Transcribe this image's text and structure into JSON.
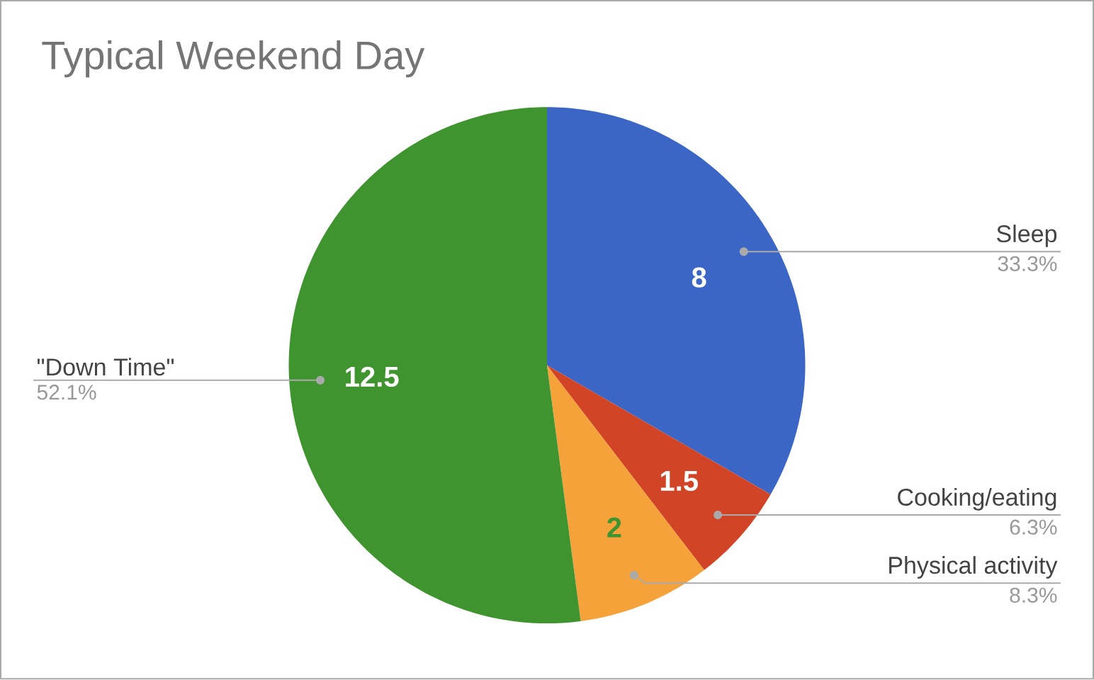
{
  "chart_data": {
    "type": "pie",
    "title": "Typical Weekend Day",
    "categories": [
      "Sleep",
      "Cooking/eating",
      "Physical activity",
      "\"Down Time\""
    ],
    "values": [
      8,
      1.5,
      2,
      12.5
    ],
    "colors": [
      "#3b66c6",
      "#d24426",
      "#f5a23b",
      "#3f942f"
    ],
    "data_labels": true,
    "annotations": [
      "33.3%",
      "6.3%",
      "8.3%",
      "52.1%"
    ]
  }
}
